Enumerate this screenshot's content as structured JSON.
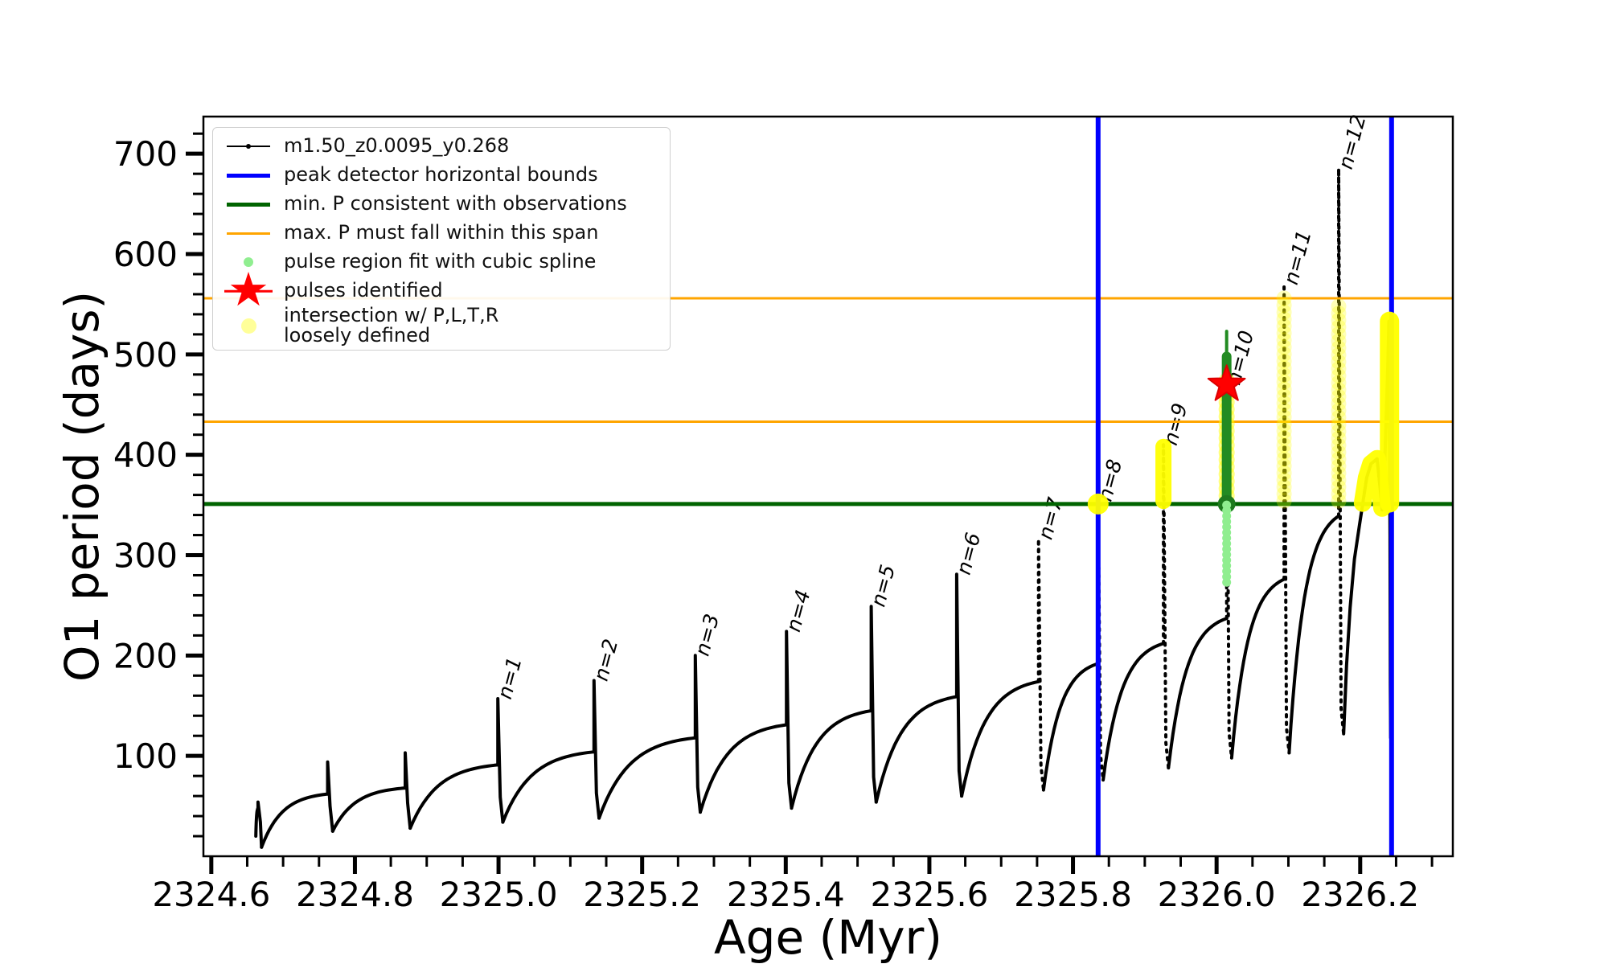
{
  "figure": {
    "xlabel": "Age (Myr)",
    "ylabel": "O1 period (days)"
  },
  "legend": {
    "items": [
      {
        "label": "m1.50_z0.0095_y0.268",
        "marker": "line-dot",
        "color": "#000000"
      },
      {
        "label": "peak detector horizontal bounds",
        "marker": "line-thick",
        "color": "#0000ff"
      },
      {
        "label": "min. P consistent with observations",
        "marker": "line-thick",
        "color": "#006400"
      },
      {
        "label": "max. P must fall within this span",
        "marker": "line-thin",
        "color": "#ffa500"
      },
      {
        "label": "pulse region fit with cubic spline",
        "marker": "dot-small",
        "color": "#90ee90"
      },
      {
        "label": "pulses identified",
        "marker": "star",
        "color": "#ff0000"
      },
      {
        "label": "intersection w/ P,L,T,R\nloosely defined",
        "marker": "dot-large",
        "color": "#ffff00"
      }
    ]
  },
  "chart_data": {
    "type": "line",
    "title": "",
    "xlabel": "Age (Myr)",
    "ylabel": "O1 period (days)",
    "xlim": [
      2324.589,
      2326.329
    ],
    "ylim": [
      0,
      737
    ],
    "grid": false,
    "legend_position": "upper left",
    "x_ticks": [
      2324.6,
      2324.8,
      2325.0,
      2325.2,
      2325.4,
      2325.6,
      2325.8,
      2326.0,
      2326.2
    ],
    "x_tick_labels": [
      "2324.6",
      "2324.8",
      "2325.0",
      "2325.2",
      "2325.4",
      "2325.6",
      "2325.8",
      "2326.0",
      "2326.2"
    ],
    "x_minor_step": 0.05,
    "y_ticks": [
      100,
      200,
      300,
      400,
      500,
      600,
      700
    ],
    "y_tick_labels": [
      "100",
      "200",
      "300",
      "400",
      "500",
      "600",
      "700"
    ],
    "y_minor_step": 20,
    "series_label": "m1.50_z0.0095_y0.268",
    "colors": {
      "series": "#000000",
      "peak_bounds": "#0000ff",
      "min_P": "#006400",
      "max_P_span": "#ffa500",
      "spline_fit": "#228b22",
      "spline_cap": "#1e7a1e",
      "pulse_region": "#90ee90",
      "pulse_star": "#ff0000",
      "intersection": "#ffff00"
    },
    "hlines": [
      {
        "name": "min-P-line",
        "y": 351,
        "color": "#006400",
        "width": 5
      },
      {
        "name": "max-P-span-lower",
        "y": 433,
        "color": "#ffa500",
        "width": 3
      },
      {
        "name": "max-P-span-upper",
        "y": 556,
        "color": "#ffa500",
        "width": 3
      }
    ],
    "vlines": [
      {
        "name": "peak-bound-left",
        "x": 2325.835,
        "color": "#0000ff",
        "width": 6
      },
      {
        "name": "peak-bound-right",
        "x": 2326.2437,
        "color": "#0000ff",
        "width": 6
      }
    ],
    "curve": {
      "start": [
        2324.662,
        20
      ],
      "teeth": [
        {
          "x": 2324.665,
          "shoulder": 48,
          "peak": 54,
          "dipx": 2324.67,
          "dip": 9,
          "label": null
        },
        {
          "x": 2324.762,
          "shoulder": 62,
          "peak": 94,
          "dipx": 2324.769,
          "dip": 25,
          "label": null
        },
        {
          "x": 2324.87,
          "shoulder": 68,
          "peak": 103,
          "dipx": 2324.877,
          "dip": 28,
          "label": null
        },
        {
          "x": 2324.999,
          "shoulder": 91,
          "peak": 157,
          "dipx": 2325.006,
          "dip": 34,
          "label": "n=1"
        },
        {
          "x": 2325.133,
          "shoulder": 104,
          "peak": 175,
          "dipx": 2325.14,
          "dip": 38,
          "label": "n=2"
        },
        {
          "x": 2325.274,
          "shoulder": 118,
          "peak": 200,
          "dipx": 2325.281,
          "dip": 44,
          "label": "n=3"
        },
        {
          "x": 2325.401,
          "shoulder": 131,
          "peak": 224,
          "dipx": 2325.408,
          "dip": 48,
          "label": "n=4"
        },
        {
          "x": 2325.519,
          "shoulder": 145,
          "peak": 249,
          "dipx": 2325.526,
          "dip": 54,
          "label": "n=5"
        },
        {
          "x": 2325.638,
          "shoulder": 159,
          "peak": 281,
          "dipx": 2325.645,
          "dip": 60,
          "label": "n=6"
        },
        {
          "x": 2325.752,
          "shoulder": 174,
          "peak": 316,
          "dipx": 2325.759,
          "dip": 66,
          "label": "n=7"
        },
        {
          "x": 2325.835,
          "shoulder": 192,
          "peak": 354,
          "dipx": 2325.842,
          "dip": 76,
          "label": "n=8"
        },
        {
          "x": 2325.926,
          "shoulder": 212,
          "peak": 410,
          "dipx": 2325.933,
          "dip": 88,
          "label": "n=9"
        },
        {
          "x": 2326.014,
          "shoulder": 237,
          "peak": 498,
          "dipx": 2326.021,
          "dip": 98,
          "label": "n=10",
          "label_y": 470
        },
        {
          "x": 2326.094,
          "shoulder": 276,
          "peak": 570,
          "dipx": 2326.101,
          "dip": 103,
          "label": "n=11"
        },
        {
          "x": 2326.17,
          "shoulder": 339,
          "peak": 685,
          "dipx": 2326.177,
          "dip": 122,
          "label": "n=12"
        }
      ],
      "tail": [
        [
          2326.181,
          190
        ],
        [
          2326.186,
          248
        ],
        [
          2326.192,
          296
        ],
        [
          2326.199,
          330
        ],
        [
          2326.2035,
          351
        ],
        [
          2326.209,
          377
        ],
        [
          2326.215,
          391
        ],
        [
          2326.2235,
          396
        ],
        [
          2326.2285,
          362
        ],
        [
          2326.2305,
          345
        ],
        [
          2326.233,
          368
        ],
        [
          2326.236,
          430
        ],
        [
          2326.2385,
          490
        ],
        [
          2326.24,
          533
        ],
        [
          2326.2415,
          320
        ],
        [
          2326.242,
          170
        ],
        [
          2326.2425,
          118
        ]
      ]
    },
    "pulse_fit_spline": {
      "x": 2326.014,
      "thick_from": 352,
      "thick_to": 498,
      "thin_to": 523,
      "cap_y": 351
    },
    "pulse_region_dots": {
      "x": 2326.014,
      "from": 270,
      "to": 350,
      "step": 5.5
    },
    "pulses_identified": [
      {
        "x": 2326.014,
        "y": 470
      }
    ],
    "intersections": [
      {
        "type": "dot",
        "x": 2325.835,
        "y": 351
      },
      {
        "type": "thick",
        "x": 2325.926,
        "from": 354,
        "to": 408
      },
      {
        "type": "dots",
        "x": 2326.014,
        "from": 352,
        "to": 474
      },
      {
        "type": "rings",
        "x": 2326.094,
        "from": 354,
        "to": 556
      },
      {
        "type": "rings",
        "x": 2326.17,
        "from": 354,
        "to": 548
      },
      {
        "type": "path",
        "points": [
          [
            2326.2035,
            352
          ],
          [
            2326.209,
            377
          ],
          [
            2326.215,
            391
          ],
          [
            2326.2235,
            396
          ],
          [
            2326.2285,
            362
          ],
          [
            2326.2305,
            347
          ]
        ],
        "width": 22
      },
      {
        "type": "bar",
        "x": 2326.2408,
        "from": 352,
        "to": 533,
        "width": 24
      }
    ]
  }
}
